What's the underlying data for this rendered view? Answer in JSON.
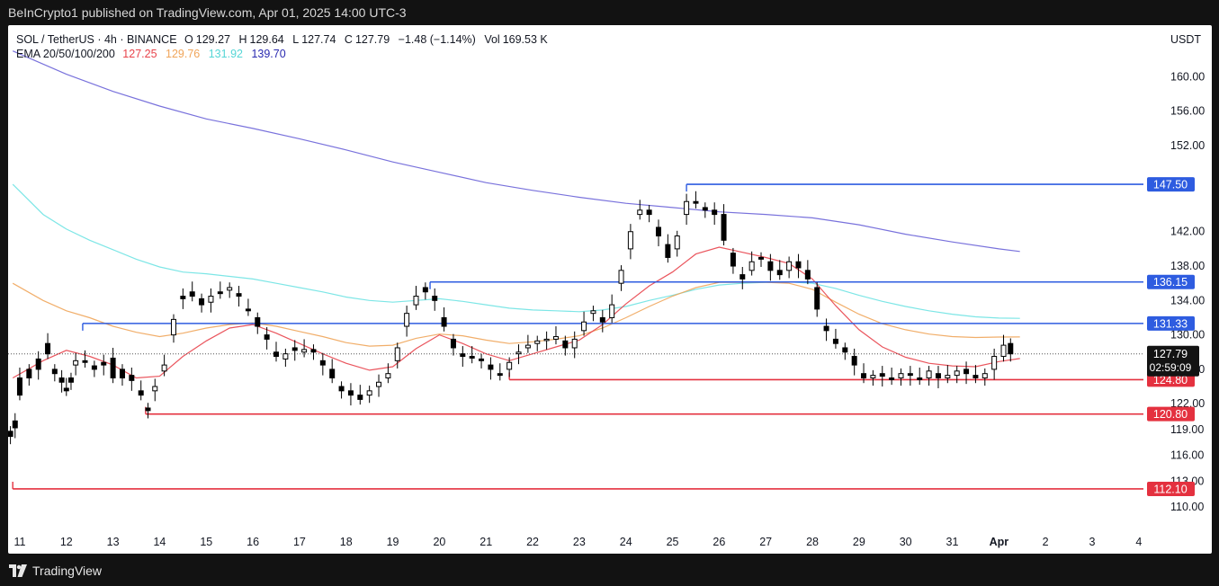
{
  "header": {
    "publisher_line": "BeInCrypto1 published on TradingView.com, Apr 01, 2025 14:00 UTC-3"
  },
  "legend": {
    "symbol": "SOL / TetherUS · 4h · BINANCE",
    "open_label": "O",
    "open": "129.27",
    "high_label": "H",
    "high": "129.64",
    "low_label": "L",
    "low": "127.74",
    "close_label": "C",
    "close": "127.79",
    "change": "−1.48 (−1.14%)",
    "vol_label": "Vol",
    "vol": "169.53 K",
    "ema_label": "EMA 20/50/100/200",
    "ema20": "127.25",
    "ema50": "129.76",
    "ema100": "131.92",
    "ema200": "139.70"
  },
  "currency": "USDT",
  "footer": {
    "brand": "TradingView"
  },
  "colors": {
    "ema20": "#e8434b",
    "ema50": "#f0a55a",
    "ema100": "#6fe3e3",
    "ema200": "#6a63d8",
    "resistance": "#2e5ce0",
    "support": "#e4313f",
    "up_candle": "#ffffff",
    "down_candle": "#000000"
  },
  "chart_data": {
    "type": "candlestick",
    "ylim": [
      107.5,
      166.0
    ],
    "y_ticks": [
      "110.00",
      "113.00",
      "116.00",
      "119.00",
      "122.00",
      "126.00",
      "130.00",
      "134.00",
      "138.00",
      "142.00",
      "152.00",
      "156.00",
      "160.00"
    ],
    "x_ticks": [
      "11",
      "12",
      "13",
      "14",
      "15",
      "16",
      "17",
      "18",
      "19",
      "20",
      "21",
      "22",
      "23",
      "24",
      "25",
      "26",
      "27",
      "28",
      "29",
      "30",
      "31",
      "Apr",
      "2",
      "3",
      "4"
    ],
    "x_range_days": [
      10.75,
      35.1
    ],
    "horizontal_levels": [
      {
        "value": 147.5,
        "label": "147.50",
        "kind": "resistance",
        "from_day": 25.3
      },
      {
        "value": 136.15,
        "label": "136.15",
        "kind": "resistance",
        "from_day": 19.8
      },
      {
        "value": 131.33,
        "label": "131.33",
        "kind": "resistance",
        "from_day": 12.35
      },
      {
        "value": 124.8,
        "label": "124.80",
        "kind": "support",
        "from_day": 21.5
      },
      {
        "value": 120.8,
        "label": "120.80",
        "kind": "support",
        "from_day": 13.7
      },
      {
        "value": 112.1,
        "label": "112.10",
        "kind": "support",
        "from_day": 10.85
      }
    ],
    "current_price": {
      "value": 127.79,
      "label": "127.79",
      "countdown": "02:59:09"
    },
    "candle_anchors": [
      [
        10.8,
        118.8,
        118.2
      ],
      [
        10.9,
        120.0,
        119.2
      ],
      [
        11.0,
        125.0,
        123.0
      ],
      [
        11.2,
        126.0,
        125.0
      ],
      [
        11.4,
        127.2,
        126.0
      ],
      [
        11.6,
        129.0,
        127.8
      ],
      [
        11.75,
        126.0,
        125.5
      ],
      [
        11.9,
        125.0,
        124.5
      ],
      [
        12.0,
        123.8,
        123.5
      ],
      [
        12.1,
        125.0,
        124.5
      ],
      [
        12.2,
        126.5,
        127.0
      ],
      [
        12.4,
        127.0,
        126.8
      ],
      [
        12.6,
        126.4,
        126.0
      ],
      [
        12.8,
        126.8,
        126.5
      ],
      [
        13.0,
        127.3,
        125.0
      ],
      [
        13.2,
        126.0,
        125.0
      ],
      [
        13.4,
        125.3,
        124.7
      ],
      [
        13.6,
        123.5,
        123.0
      ],
      [
        13.75,
        121.5,
        121.2
      ],
      [
        13.9,
        123.5,
        124.0
      ],
      [
        14.1,
        125.8,
        126.5
      ],
      [
        14.3,
        130.0,
        131.8
      ],
      [
        14.5,
        134.5,
        134.2
      ],
      [
        14.7,
        135.0,
        134.5
      ],
      [
        14.9,
        134.2,
        133.5
      ],
      [
        15.1,
        133.8,
        134.5
      ],
      [
        15.3,
        135.0,
        134.8
      ],
      [
        15.5,
        135.2,
        135.5
      ],
      [
        15.7,
        134.8,
        134.5
      ],
      [
        15.9,
        133.0,
        132.8
      ],
      [
        16.1,
        132.0,
        131.0
      ],
      [
        16.3,
        130.0,
        129.5
      ],
      [
        16.5,
        128.0,
        127.5
      ],
      [
        16.7,
        127.2,
        127.8
      ],
      [
        16.9,
        128.5,
        128.2
      ],
      [
        17.1,
        128.0,
        128.3
      ],
      [
        17.3,
        128.3,
        128.0
      ],
      [
        17.5,
        127.0,
        126.5
      ],
      [
        17.7,
        126.0,
        125.0
      ],
      [
        17.9,
        124.0,
        123.5
      ],
      [
        18.1,
        123.5,
        123.0
      ],
      [
        18.3,
        123.0,
        122.5
      ],
      [
        18.5,
        123.0,
        123.5
      ],
      [
        18.7,
        124.0,
        124.5
      ],
      [
        18.9,
        125.0,
        125.5
      ],
      [
        19.1,
        127.0,
        128.5
      ],
      [
        19.3,
        131.0,
        132.5
      ],
      [
        19.5,
        133.5,
        134.5
      ],
      [
        19.7,
        135.5,
        135.0
      ],
      [
        19.9,
        134.5,
        134.0
      ],
      [
        20.1,
        132.0,
        131.0
      ],
      [
        20.3,
        129.5,
        128.5
      ],
      [
        20.5,
        127.8,
        127.5
      ],
      [
        20.7,
        127.5,
        127.3
      ],
      [
        20.9,
        127.2,
        127.0
      ],
      [
        21.1,
        126.5,
        126.0
      ],
      [
        21.3,
        125.5,
        125.3
      ],
      [
        21.5,
        126.0,
        126.8
      ],
      [
        21.7,
        127.8,
        128.0
      ],
      [
        21.9,
        128.5,
        128.8
      ],
      [
        22.1,
        129.0,
        129.3
      ],
      [
        22.3,
        129.5,
        129.5
      ],
      [
        22.5,
        129.5,
        129.8
      ],
      [
        22.7,
        129.3,
        128.5
      ],
      [
        22.9,
        128.5,
        129.5
      ],
      [
        23.1,
        130.5,
        131.5
      ],
      [
        23.3,
        132.5,
        132.8
      ],
      [
        23.5,
        132.0,
        131.5
      ],
      [
        23.7,
        132.0,
        133.5
      ],
      [
        23.9,
        136.0,
        137.5
      ],
      [
        24.1,
        140.0,
        142.0
      ],
      [
        24.3,
        144.0,
        144.5
      ],
      [
        24.5,
        144.5,
        144.0
      ],
      [
        24.7,
        142.5,
        141.5
      ],
      [
        24.9,
        140.5,
        139.0
      ],
      [
        25.1,
        140.0,
        141.5
      ],
      [
        25.3,
        144.0,
        145.5
      ],
      [
        25.5,
        145.5,
        145.3
      ],
      [
        25.7,
        144.8,
        144.5
      ],
      [
        25.9,
        144.5,
        144.0
      ],
      [
        26.1,
        144.0,
        141.0
      ],
      [
        26.3,
        139.5,
        138.0
      ],
      [
        26.5,
        137.0,
        136.5
      ],
      [
        26.7,
        137.5,
        138.5
      ],
      [
        26.9,
        139.0,
        138.8
      ],
      [
        27.1,
        138.5,
        137.5
      ],
      [
        27.3,
        137.5,
        137.0
      ],
      [
        27.5,
        137.5,
        138.5
      ],
      [
        27.7,
        138.5,
        137.8
      ],
      [
        27.9,
        137.5,
        136.5
      ],
      [
        28.1,
        135.5,
        133.0
      ],
      [
        28.3,
        131.0,
        130.5
      ],
      [
        28.5,
        129.5,
        129.0
      ],
      [
        28.7,
        128.5,
        128.0
      ],
      [
        28.9,
        127.5,
        126.5
      ],
      [
        29.1,
        125.5,
        125.0
      ],
      [
        29.3,
        125.0,
        125.3
      ],
      [
        29.5,
        125.5,
        125.2
      ],
      [
        29.7,
        125.0,
        124.8
      ],
      [
        29.9,
        125.0,
        125.5
      ],
      [
        30.1,
        125.5,
        125.3
      ],
      [
        30.3,
        125.0,
        124.8
      ],
      [
        30.5,
        125.0,
        125.8
      ],
      [
        30.7,
        125.5,
        125.0
      ],
      [
        30.9,
        125.0,
        125.3
      ],
      [
        31.1,
        125.3,
        125.8
      ],
      [
        31.3,
        126.0,
        125.5
      ],
      [
        31.5,
        125.3,
        125.0
      ],
      [
        31.7,
        125.0,
        125.5
      ],
      [
        31.9,
        126.0,
        127.5
      ],
      [
        32.1,
        127.5,
        128.8
      ],
      [
        32.25,
        129.0,
        127.8
      ]
    ],
    "ema20_points": [
      [
        10.85,
        125.0
      ],
      [
        11.5,
        127.0
      ],
      [
        12.0,
        128.2
      ],
      [
        12.5,
        127.5
      ],
      [
        13.0,
        126.5
      ],
      [
        13.5,
        125.0
      ],
      [
        14.0,
        125.2
      ],
      [
        14.5,
        127.5
      ],
      [
        15.0,
        129.3
      ],
      [
        15.5,
        130.8
      ],
      [
        16.0,
        131.2
      ],
      [
        16.5,
        130.2
      ],
      [
        17.0,
        129.0
      ],
      [
        17.5,
        127.8
      ],
      [
        18.0,
        126.7
      ],
      [
        18.5,
        125.9
      ],
      [
        19.0,
        126.3
      ],
      [
        19.5,
        128.4
      ],
      [
        20.0,
        130.0
      ],
      [
        20.5,
        129.0
      ],
      [
        21.0,
        127.8
      ],
      [
        21.5,
        127.0
      ],
      [
        22.0,
        127.8
      ],
      [
        22.5,
        128.6
      ],
      [
        23.0,
        129.4
      ],
      [
        23.5,
        131.2
      ],
      [
        24.0,
        133.6
      ],
      [
        24.5,
        135.7
      ],
      [
        25.0,
        137.3
      ],
      [
        25.5,
        139.4
      ],
      [
        26.0,
        140.2
      ],
      [
        26.5,
        139.6
      ],
      [
        27.0,
        139.0
      ],
      [
        27.5,
        138.3
      ],
      [
        28.0,
        136.5
      ],
      [
        28.5,
        133.4
      ],
      [
        29.0,
        130.6
      ],
      [
        29.5,
        128.6
      ],
      [
        30.0,
        127.4
      ],
      [
        30.5,
        126.7
      ],
      [
        31.0,
        126.4
      ],
      [
        31.5,
        126.3
      ],
      [
        32.0,
        126.9
      ],
      [
        32.45,
        127.25
      ]
    ],
    "ema50_points": [
      [
        10.85,
        136.0
      ],
      [
        11.5,
        134.0
      ],
      [
        12.0,
        132.8
      ],
      [
        12.5,
        132.0
      ],
      [
        13.0,
        131.0
      ],
      [
        13.5,
        130.3
      ],
      [
        14.0,
        129.8
      ],
      [
        14.5,
        130.2
      ],
      [
        15.0,
        130.8
      ],
      [
        15.5,
        131.2
      ],
      [
        16.0,
        131.4
      ],
      [
        16.5,
        131.0
      ],
      [
        17.0,
        130.4
      ],
      [
        17.5,
        129.8
      ],
      [
        18.0,
        129.1
      ],
      [
        18.5,
        128.7
      ],
      [
        19.0,
        128.8
      ],
      [
        19.5,
        129.6
      ],
      [
        20.0,
        130.1
      ],
      [
        20.5,
        129.9
      ],
      [
        21.0,
        129.4
      ],
      [
        21.5,
        129.0
      ],
      [
        22.0,
        129.2
      ],
      [
        22.5,
        129.5
      ],
      [
        23.0,
        129.9
      ],
      [
        23.5,
        130.8
      ],
      [
        24.0,
        132.0
      ],
      [
        24.5,
        133.3
      ],
      [
        25.0,
        134.5
      ],
      [
        25.5,
        135.5
      ],
      [
        26.0,
        136.1
      ],
      [
        26.5,
        136.1
      ],
      [
        27.0,
        136.1
      ],
      [
        27.5,
        136.0
      ],
      [
        28.0,
        135.3
      ],
      [
        28.5,
        133.8
      ],
      [
        29.0,
        132.4
      ],
      [
        29.5,
        131.3
      ],
      [
        30.0,
        130.6
      ],
      [
        30.5,
        130.1
      ],
      [
        31.0,
        129.8
      ],
      [
        31.5,
        129.7
      ],
      [
        32.0,
        129.75
      ],
      [
        32.45,
        129.76
      ]
    ],
    "ema100_points": [
      [
        10.85,
        147.5
      ],
      [
        11.5,
        144.0
      ],
      [
        12.0,
        142.3
      ],
      [
        12.5,
        141.0
      ],
      [
        13.0,
        139.9
      ],
      [
        13.5,
        138.8
      ],
      [
        14.0,
        137.9
      ],
      [
        14.5,
        137.3
      ],
      [
        15.0,
        137.1
      ],
      [
        15.5,
        136.8
      ],
      [
        16.0,
        136.5
      ],
      [
        16.5,
        136.0
      ],
      [
        17.0,
        135.5
      ],
      [
        17.5,
        135.0
      ],
      [
        18.0,
        134.4
      ],
      [
        18.5,
        134.0
      ],
      [
        19.0,
        133.8
      ],
      [
        19.5,
        134.0
      ],
      [
        20.0,
        134.2
      ],
      [
        20.5,
        133.9
      ],
      [
        21.0,
        133.5
      ],
      [
        21.5,
        133.1
      ],
      [
        22.0,
        132.9
      ],
      [
        22.5,
        132.8
      ],
      [
        23.0,
        132.7
      ],
      [
        23.5,
        132.9
      ],
      [
        24.0,
        133.3
      ],
      [
        24.5,
        134.0
      ],
      [
        25.0,
        134.6
      ],
      [
        25.5,
        135.3
      ],
      [
        26.0,
        135.8
      ],
      [
        26.5,
        136.0
      ],
      [
        27.0,
        136.1
      ],
      [
        27.5,
        136.15
      ],
      [
        28.0,
        136.0
      ],
      [
        28.5,
        135.4
      ],
      [
        29.0,
        134.6
      ],
      [
        29.5,
        133.9
      ],
      [
        30.0,
        133.3
      ],
      [
        30.5,
        132.8
      ],
      [
        31.0,
        132.4
      ],
      [
        31.5,
        132.1
      ],
      [
        32.0,
        131.95
      ],
      [
        32.45,
        131.92
      ]
    ],
    "ema200_points": [
      [
        10.85,
        163.0
      ],
      [
        12.0,
        160.3
      ],
      [
        13.0,
        158.3
      ],
      [
        14.0,
        156.6
      ],
      [
        15.0,
        155.1
      ],
      [
        16.0,
        154.0
      ],
      [
        17.0,
        152.8
      ],
      [
        18.0,
        151.5
      ],
      [
        19.0,
        150.1
      ],
      [
        20.0,
        148.9
      ],
      [
        21.0,
        147.7
      ],
      [
        22.0,
        146.8
      ],
      [
        23.0,
        146.0
      ],
      [
        24.0,
        145.3
      ],
      [
        25.0,
        144.8
      ],
      [
        26.0,
        144.3
      ],
      [
        27.0,
        144.0
      ],
      [
        28.0,
        143.6
      ],
      [
        29.0,
        142.8
      ],
      [
        30.0,
        141.7
      ],
      [
        31.0,
        140.8
      ],
      [
        32.0,
        140.0
      ],
      [
        32.45,
        139.7
      ]
    ]
  }
}
